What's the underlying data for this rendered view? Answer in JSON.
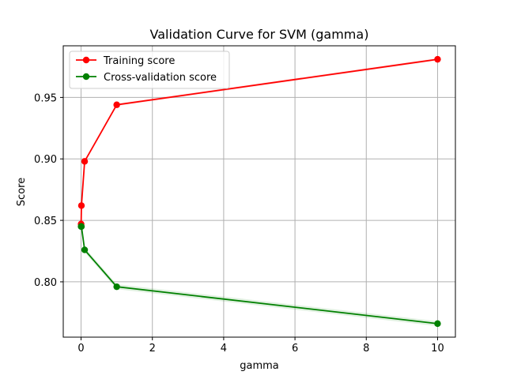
{
  "chart_data": {
    "type": "line",
    "title": "Validation Curve for SVM (gamma)",
    "xlabel": "gamma",
    "ylabel": "Score",
    "xlim": [
      -0.5,
      10.5
    ],
    "ylim": [
      0.755,
      0.992
    ],
    "xticks": [
      0,
      2,
      4,
      6,
      8,
      10
    ],
    "yticks": [
      0.8,
      0.85,
      0.9,
      0.95
    ],
    "ytick_labels": [
      "0.80",
      "0.85",
      "0.90",
      "0.95"
    ],
    "grid": true,
    "legend_position": "top-left",
    "x": [
      0.001,
      0.01,
      0.1,
      1,
      10
    ],
    "series": [
      {
        "name": "Training score",
        "color": "#ff0000",
        "values": [
          0.847,
          0.862,
          0.898,
          0.944,
          0.981
        ],
        "band": [
          0.001,
          0.001,
          0.001,
          0.001,
          0.001
        ]
      },
      {
        "name": "Cross-validation score",
        "color": "#008000",
        "values": [
          0.845,
          0.845,
          0.826,
          0.796,
          0.766
        ],
        "band": [
          0.002,
          0.002,
          0.002,
          0.002,
          0.002
        ]
      }
    ]
  }
}
